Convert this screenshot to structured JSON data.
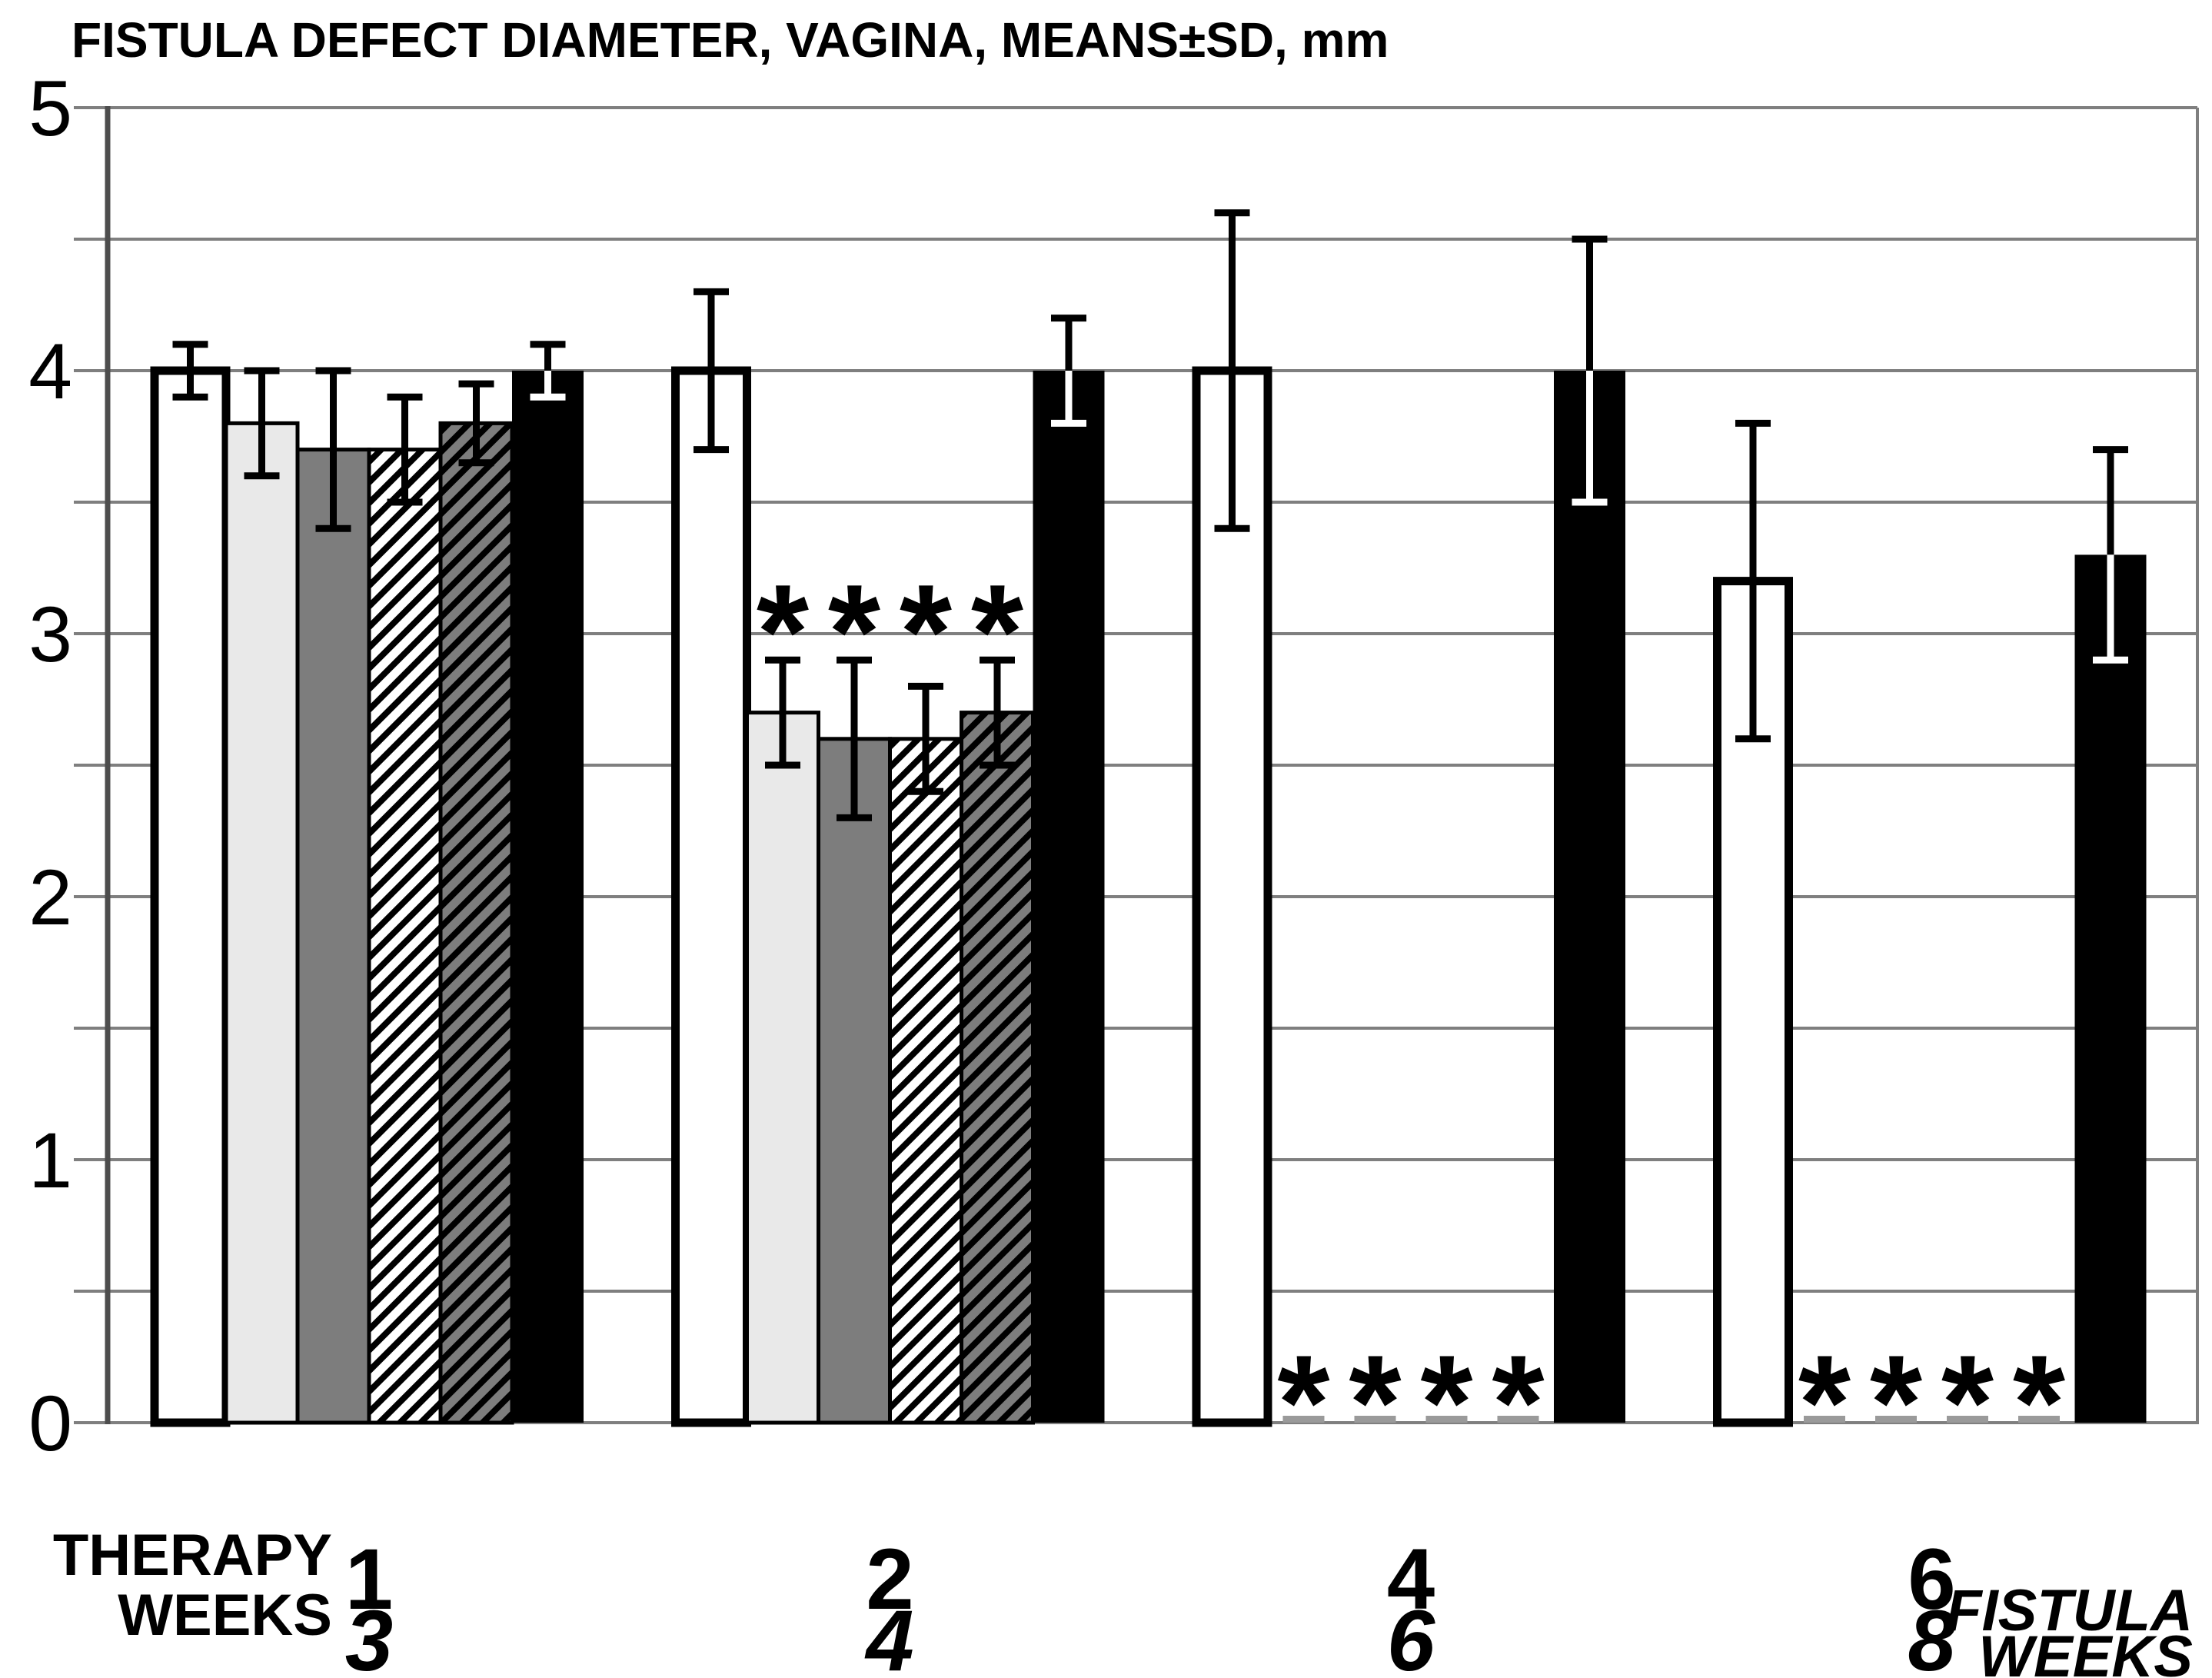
{
  "title": "FISTULA DEFECT DIAMETER, VAGINA, MEANS±SD, mm",
  "chart_data": {
    "type": "bar",
    "title": "FISTULA DEFECT DIAMETER, VAGINA, MEANS±SD, mm",
    "xlabel": "",
    "ylabel": "",
    "ylim": [
      0,
      5
    ],
    "grid_step": 0.5,
    "grid_on": true,
    "legend_position": "none",
    "y_tick_labels": [
      "0",
      "1",
      "2",
      "3",
      "4",
      "5"
    ],
    "x_axis_left_label_lines": [
      "THERAPY",
      "WEEKS"
    ],
    "x_axis_right_label_lines": [
      "FISTULA",
      "WEEKS"
    ],
    "significance_marker": "*",
    "groups": [
      {
        "therapy_weeks": "1",
        "fistula_weeks": "3",
        "asterisk_row_y": null
      },
      {
        "therapy_weeks": "2",
        "fistula_weeks": "4",
        "asterisk_row_y": 3.1
      },
      {
        "therapy_weeks": "4",
        "fistula_weeks": "6",
        "asterisk_row_y": 0.17
      },
      {
        "therapy_weeks": "6",
        "fistula_weeks": "8",
        "asterisk_row_y": 0.17
      }
    ],
    "series": [
      {
        "name": "white-bar",
        "style": "white",
        "values": [
          4.0,
          4.0,
          4.0,
          3.2
        ],
        "sd": [
          0.1,
          0.3,
          0.6,
          0.6
        ],
        "significant": [
          false,
          false,
          false,
          false
        ]
      },
      {
        "name": "light-gray-bar",
        "style": "light-gray",
        "values": [
          3.8,
          2.7,
          0.0,
          0.0
        ],
        "sd": [
          0.2,
          0.2,
          0.0,
          0.0
        ],
        "significant": [
          false,
          true,
          true,
          true
        ]
      },
      {
        "name": "dark-gray-bar",
        "style": "dark-gray",
        "values": [
          3.7,
          2.6,
          0.0,
          0.0
        ],
        "sd": [
          0.3,
          0.3,
          0.0,
          0.0
        ],
        "significant": [
          false,
          true,
          true,
          true
        ]
      },
      {
        "name": "light-hatch-bar",
        "style": "light-hatch",
        "values": [
          3.7,
          2.6,
          0.0,
          0.0
        ],
        "sd": [
          0.2,
          0.2,
          0.0,
          0.0
        ],
        "significant": [
          false,
          true,
          true,
          true
        ]
      },
      {
        "name": "dark-hatch-bar",
        "style": "dark-hatch",
        "values": [
          3.8,
          2.7,
          0.0,
          0.0
        ],
        "sd": [
          0.15,
          0.2,
          0.0,
          0.0
        ],
        "significant": [
          false,
          true,
          true,
          true
        ]
      },
      {
        "name": "black-bar",
        "style": "black",
        "values": [
          4.0,
          4.0,
          4.0,
          3.3
        ],
        "sd": [
          0.1,
          0.2,
          0.5,
          0.4
        ],
        "significant": [
          false,
          false,
          false,
          false
        ]
      }
    ],
    "colors": {
      "white": "#ffffff",
      "light_gray": "#e9e9e9",
      "dark_gray": "#7d7d7d",
      "hatch_stripe": "#000000",
      "black": "#000000",
      "grid": "#7f7f7f",
      "axis": "#4d4d4d",
      "zero_dash": "#9a9a9a"
    }
  }
}
